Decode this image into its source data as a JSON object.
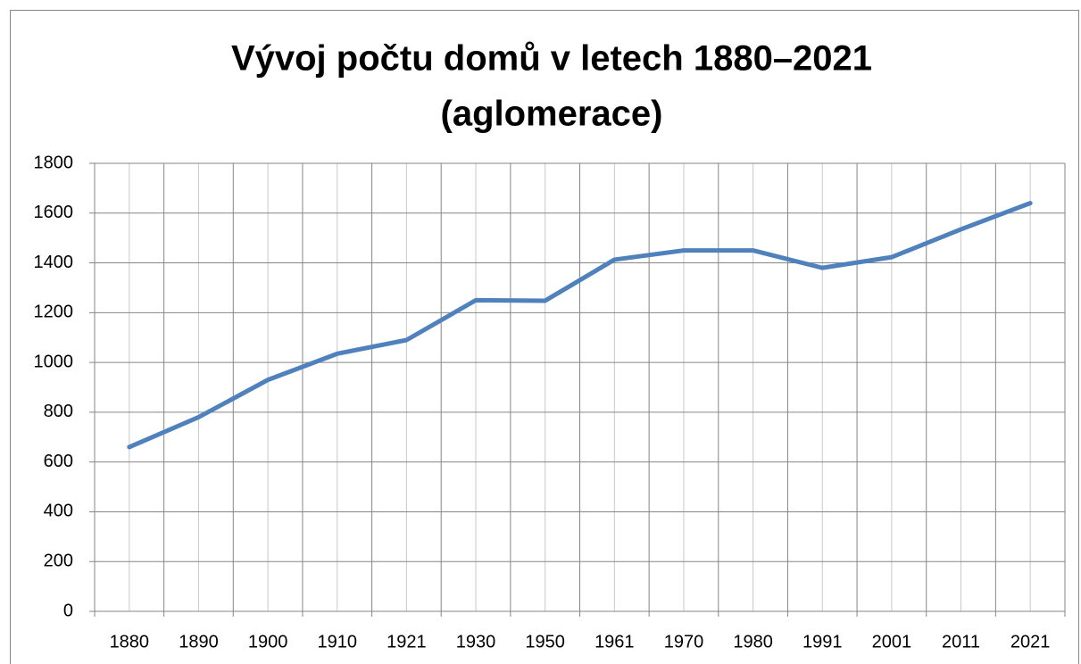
{
  "chart_data": {
    "type": "line",
    "title": [
      "Vývoj počtu domů v letech 1880–2021",
      "(aglomerace)"
    ],
    "categories": [
      "1880",
      "1890",
      "1900",
      "1910",
      "1921",
      "1930",
      "1950",
      "1961",
      "1970",
      "1980",
      "1991",
      "2001",
      "2011",
      "2021"
    ],
    "series": [
      {
        "color": "#4f81bd",
        "values": [
          660,
          780,
          930,
          1035,
          1090,
          1250,
          1248,
          1413,
          1450,
          1450,
          1380,
          1423,
          1535,
          1640
        ]
      }
    ],
    "ylim": [
      0,
      1800
    ],
    "yticks": [
      0,
      200,
      400,
      600,
      800,
      1000,
      1200,
      1400,
      1600,
      1800
    ],
    "grid": true
  }
}
